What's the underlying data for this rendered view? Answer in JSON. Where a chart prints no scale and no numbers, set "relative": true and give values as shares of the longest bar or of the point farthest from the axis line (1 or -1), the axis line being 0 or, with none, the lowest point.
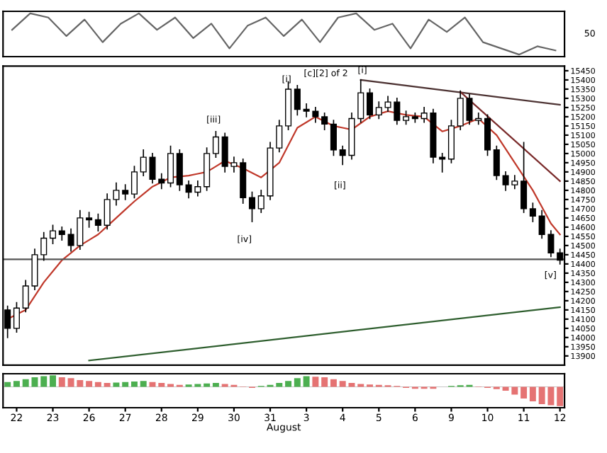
{
  "chart_data": [
    {
      "type": "line",
      "relative": true,
      "categories": [
        null,
        null,
        null,
        null,
        null,
        null,
        null,
        null,
        null,
        null,
        null,
        null,
        null,
        null,
        null,
        null,
        null,
        null,
        null,
        null,
        null,
        null,
        null,
        null,
        null,
        null,
        null,
        null,
        null,
        null,
        null
      ],
      "series": [
        {
          "color": "#666666",
          "values": [
            0.6,
            1,
            0.9,
            0.45,
            0.85,
            0.3,
            0.75,
            1,
            0.6,
            0.9,
            0.4,
            0.75,
            0.15,
            0.7,
            0.9,
            0.45,
            0.85,
            0.3,
            0.9,
            1,
            0.6,
            0.75,
            0.15,
            0.85,
            0.55,
            0.9,
            0.3,
            0.15,
            0,
            0.2,
            0.1
          ]
        }
      ],
      "annotations": [
        "50"
      ],
      "tick_labels": false
    },
    {
      "type": "candlestick",
      "categories": [
        null,
        null,
        null,
        null,
        null,
        null,
        null,
        null,
        null,
        null,
        null,
        null,
        null,
        null,
        null,
        null,
        null,
        null,
        null,
        null,
        null,
        null,
        null,
        null,
        null,
        null,
        null,
        null,
        null,
        null,
        null,
        null,
        null,
        null,
        null,
        null,
        null,
        null,
        null,
        null,
        null,
        null,
        null,
        null,
        null,
        null,
        null,
        null,
        null,
        null,
        null,
        null,
        null,
        null,
        null,
        null,
        null,
        null,
        null,
        null,
        null,
        null
      ],
      "ohlc": [
        [
          14150,
          14170,
          14000,
          14050
        ],
        [
          14050,
          14190,
          14030,
          14160
        ],
        [
          14160,
          14310,
          14140,
          14280
        ],
        [
          14280,
          14480,
          14260,
          14450
        ],
        [
          14450,
          14570,
          14420,
          14540
        ],
        [
          14540,
          14610,
          14510,
          14580
        ],
        [
          14580,
          14600,
          14530,
          14560
        ],
        [
          14560,
          14590,
          14470,
          14500
        ],
        [
          14500,
          14690,
          14480,
          14650
        ],
        [
          14650,
          14680,
          14600,
          14640
        ],
        [
          14640,
          14670,
          14580,
          14610
        ],
        [
          14610,
          14780,
          14590,
          14750
        ],
        [
          14750,
          14840,
          14720,
          14800
        ],
        [
          14800,
          14830,
          14750,
          14780
        ],
        [
          14780,
          14930,
          14760,
          14900
        ],
        [
          14900,
          15020,
          14880,
          14980
        ],
        [
          14980,
          15000,
          14840,
          14860
        ],
        [
          14860,
          14890,
          14810,
          14840
        ],
        [
          14840,
          15040,
          14820,
          15000
        ],
        [
          15000,
          15020,
          14800,
          14830
        ],
        [
          14830,
          14850,
          14760,
          14790
        ],
        [
          14790,
          14850,
          14770,
          14820
        ],
        [
          14820,
          15030,
          14800,
          15000
        ],
        [
          15000,
          15120,
          14980,
          15090
        ],
        [
          15090,
          15110,
          14900,
          14930
        ],
        [
          14930,
          14980,
          14900,
          14950
        ],
        [
          14950,
          14970,
          14730,
          14760
        ],
        [
          14760,
          14790,
          14630,
          14700
        ],
        [
          14700,
          14800,
          14680,
          14770
        ],
        [
          14770,
          15060,
          14750,
          15030
        ],
        [
          15030,
          15180,
          15010,
          15150
        ],
        [
          15150,
          15390,
          15130,
          15350
        ],
        [
          15350,
          15370,
          15210,
          15240
        ],
        [
          15240,
          15270,
          15200,
          15230
        ],
        [
          15230,
          15250,
          15170,
          15200
        ],
        [
          15200,
          15220,
          15130,
          15160
        ],
        [
          15160,
          15180,
          14990,
          15020
        ],
        [
          15020,
          15040,
          14940,
          14990
        ],
        [
          14990,
          15220,
          14970,
          15190
        ],
        [
          15190,
          15400,
          15170,
          15330
        ],
        [
          15330,
          15350,
          15190,
          15210
        ],
        [
          15210,
          15280,
          15190,
          15250
        ],
        [
          15250,
          15310,
          15230,
          15280
        ],
        [
          15280,
          15300,
          15160,
          15180
        ],
        [
          15180,
          15230,
          15160,
          15200
        ],
        [
          15200,
          15220,
          15170,
          15190
        ],
        [
          15190,
          15250,
          15170,
          15220
        ],
        [
          15220,
          15240,
          14950,
          14980
        ],
        [
          14980,
          15000,
          14900,
          14970
        ],
        [
          14970,
          15180,
          14950,
          15150
        ],
        [
          15150,
          15340,
          15130,
          15300
        ],
        [
          15300,
          15320,
          15160,
          15180
        ],
        [
          15180,
          15220,
          15160,
          15190
        ],
        [
          15190,
          15210,
          14990,
          15020
        ],
        [
          15020,
          15040,
          14860,
          14880
        ],
        [
          14880,
          14900,
          14800,
          14830
        ],
        [
          14830,
          14880,
          14810,
          14850
        ],
        [
          14850,
          15060,
          14680,
          14700
        ],
        [
          14700,
          14730,
          14630,
          14660
        ],
        [
          14660,
          14690,
          14540,
          14560
        ],
        [
          14560,
          14580,
          14440,
          14460
        ],
        [
          14460,
          14480,
          14400,
          14420
        ]
      ],
      "series": [
        {
          "type": "line",
          "color": "#c0392b",
          "values": [
            14100,
            14125,
            14150,
            14225,
            14300,
            14360,
            14420,
            14460,
            14500,
            14530,
            14560,
            14605,
            14650,
            14695,
            14740,
            14780,
            14820,
            14845,
            14870,
            14875,
            14880,
            14890,
            14900,
            14930,
            14960,
            14940,
            14920,
            14895,
            14870,
            14910,
            14950,
            15045,
            15140,
            15170,
            15200,
            15175,
            15150,
            15140,
            15130,
            15165,
            15200,
            15215,
            15230,
            15220,
            15210,
            15205,
            15200,
            15160,
            15120,
            15135,
            15150,
            15170,
            15190,
            15145,
            15100,
            15025,
            14950,
            14875,
            14800,
            14710,
            14620,
            14560
          ]
        },
        {
          "type": "line",
          "color": "#4d3333",
          "values": [
            null,
            null,
            null,
            null,
            null,
            null,
            null,
            null,
            null,
            null,
            null,
            null,
            null,
            null,
            null,
            null,
            null,
            null,
            null,
            null,
            null,
            null,
            null,
            null,
            null,
            null,
            null,
            null,
            null,
            null,
            null,
            null,
            null,
            null,
            null,
            null,
            null,
            null,
            null,
            15400,
            null,
            null,
            null,
            null,
            null,
            null,
            null,
            null,
            null,
            null,
            null,
            null,
            null,
            null,
            null,
            null,
            null,
            null,
            null,
            null,
            null,
            15265
          ]
        },
        {
          "type": "line",
          "color": "#7a2a2a",
          "values": [
            null,
            null,
            null,
            null,
            null,
            null,
            null,
            null,
            null,
            null,
            null,
            null,
            null,
            null,
            null,
            null,
            null,
            null,
            null,
            null,
            null,
            null,
            null,
            null,
            null,
            null,
            null,
            null,
            null,
            null,
            null,
            null,
            null,
            null,
            null,
            null,
            null,
            null,
            null,
            null,
            null,
            null,
            null,
            null,
            null,
            null,
            null,
            null,
            null,
            null,
            15335,
            null,
            null,
            null,
            null,
            null,
            null,
            null,
            null,
            null,
            null,
            14850
          ]
        },
        {
          "type": "line",
          "color": "#2e5e2e",
          "values": [
            null,
            null,
            null,
            null,
            null,
            null,
            null,
            null,
            null,
            13875,
            null,
            null,
            null,
            null,
            null,
            null,
            null,
            null,
            null,
            null,
            null,
            null,
            null,
            null,
            null,
            null,
            null,
            null,
            null,
            null,
            null,
            null,
            null,
            null,
            null,
            null,
            null,
            null,
            null,
            null,
            null,
            null,
            null,
            null,
            null,
            null,
            null,
            null,
            null,
            null,
            null,
            null,
            null,
            null,
            null,
            null,
            null,
            null,
            null,
            null,
            null,
            14165
          ]
        }
      ],
      "ref_lines": [
        {
          "axis": "y",
          "value": 14425,
          "color": "#555555"
        }
      ],
      "annotations": [
        "[c][2] of 2",
        "[i]",
        "[ii]",
        "[i]",
        "[iii]",
        "[iv]",
        "[v]"
      ],
      "ylim": [
        13850,
        15475
      ],
      "yticks": [
        13900,
        13950,
        14000,
        14050,
        14100,
        14150,
        14200,
        14250,
        14300,
        14350,
        14400,
        14450,
        14500,
        14550,
        14600,
        14650,
        14700,
        14750,
        14800,
        14850,
        14900,
        14950,
        15000,
        15050,
        15100,
        15150,
        15200,
        15250,
        15300,
        15350,
        15400,
        15450
      ],
      "tick_labels": "y"
    },
    {
      "type": "bar",
      "relative": true,
      "categories": [
        null,
        "22",
        null,
        null,
        null,
        "23",
        null,
        null,
        null,
        "26",
        null,
        null,
        null,
        "27",
        null,
        null,
        null,
        "28",
        null,
        null,
        null,
        "29",
        null,
        null,
        null,
        "30",
        null,
        null,
        null,
        "31",
        null,
        null,
        null,
        "3",
        null,
        null,
        null,
        "4",
        null,
        null,
        null,
        "5",
        null,
        null,
        null,
        "6",
        null,
        null,
        null,
        "9",
        null,
        null,
        null,
        "10",
        null,
        null,
        null,
        "11",
        null,
        null,
        null,
        "12"
      ],
      "values": [
        0.25,
        0.3,
        0.4,
        0.5,
        0.55,
        0.6,
        0.5,
        0.45,
        0.35,
        0.3,
        0.25,
        0.2,
        0.22,
        0.25,
        0.28,
        0.3,
        0.25,
        0.2,
        0.15,
        0.1,
        0.12,
        0.15,
        0.18,
        0.2,
        0.15,
        0.1,
        0.02,
        -0.05,
        0.05,
        0.1,
        0.2,
        0.3,
        0.45,
        0.55,
        0.52,
        0.5,
        0.4,
        0.3,
        0.2,
        0.15,
        0.12,
        0.1,
        0.08,
        0.05,
        -0.05,
        -0.1,
        -0.1,
        -0.1,
        0,
        0.05,
        0.08,
        0.1,
        0.02,
        -0.05,
        -0.12,
        -0.2,
        -0.4,
        -0.6,
        -0.75,
        -0.9,
        -0.95,
        -1.0
      ],
      "colors": [
        "#4caf50",
        "#4caf50",
        "#4caf50",
        "#4caf50",
        "#4caf50",
        "#4caf50",
        "#e57373",
        "#e57373",
        "#e57373",
        "#e57373",
        "#e57373",
        "#e57373",
        "#4caf50",
        "#4caf50",
        "#4caf50",
        "#4caf50",
        "#e57373",
        "#e57373",
        "#e57373",
        "#e57373",
        "#4caf50",
        "#4caf50",
        "#4caf50",
        "#4caf50",
        "#e57373",
        "#e57373",
        "#e57373",
        "#e57373",
        "#4caf50",
        "#4caf50",
        "#4caf50",
        "#4caf50",
        "#4caf50",
        "#4caf50",
        "#e57373",
        "#e57373",
        "#e57373",
        "#e57373",
        "#e57373",
        "#e57373",
        "#e57373",
        "#e57373",
        "#e57373",
        "#e57373",
        "#e57373",
        "#e57373",
        "#e57373",
        "#e57373",
        "#4caf50",
        "#4caf50",
        "#4caf50",
        "#4caf50",
        "#e57373",
        "#e57373",
        "#e57373",
        "#e57373",
        "#e57373",
        "#e57373",
        "#e57373",
        "#e57373",
        "#e57373",
        "#e57373"
      ],
      "xlabel": "August",
      "tick_labels": "x"
    }
  ]
}
